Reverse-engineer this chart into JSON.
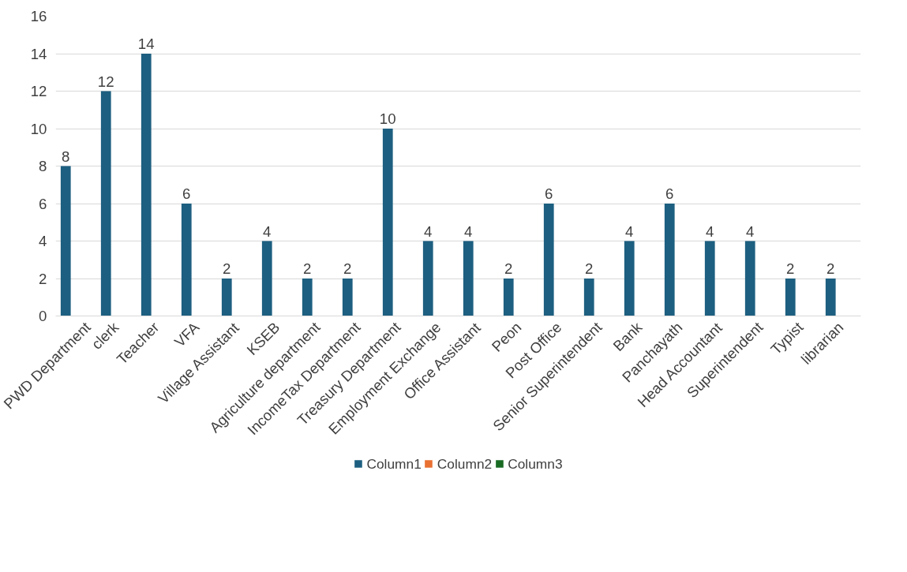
{
  "chart_data": {
    "type": "bar",
    "categories": [
      "PWD Department",
      "clerk",
      "Teacher",
      "VFA",
      "Village Assistant",
      "KSEB",
      "Agriculture department",
      "IncomeTax Department",
      "Treasury Department",
      "Employment Exchange",
      "Office Assistant",
      "Peon",
      "Post Office",
      "Senior Superintendent",
      "Bank",
      "Panchayath",
      "Head Accountant",
      "Superintendent",
      "Typist",
      "librarian"
    ],
    "series": [
      {
        "name": "Column1",
        "color": "#1d5f80",
        "values": [
          8,
          12,
          14,
          6,
          2,
          4,
          2,
          2,
          10,
          4,
          4,
          2,
          6,
          2,
          4,
          6,
          4,
          4,
          2,
          2
        ]
      },
      {
        "name": "Column2",
        "color": "#e97132",
        "values": [
          null,
          null,
          null,
          null,
          null,
          null,
          null,
          null,
          null,
          null,
          null,
          null,
          null,
          null,
          null,
          null,
          null,
          null,
          null,
          null
        ]
      },
      {
        "name": "Column3",
        "color": "#196b24",
        "values": [
          null,
          null,
          null,
          null,
          null,
          null,
          null,
          null,
          null,
          null,
          null,
          null,
          null,
          null,
          null,
          null,
          null,
          null,
          null,
          null
        ]
      }
    ],
    "ylim": [
      0,
      16
    ],
    "yticks": [
      0,
      2,
      4,
      6,
      8,
      10,
      12,
      14,
      16
    ],
    "grid": "y",
    "legend": "bottom",
    "data_labels": true
  }
}
